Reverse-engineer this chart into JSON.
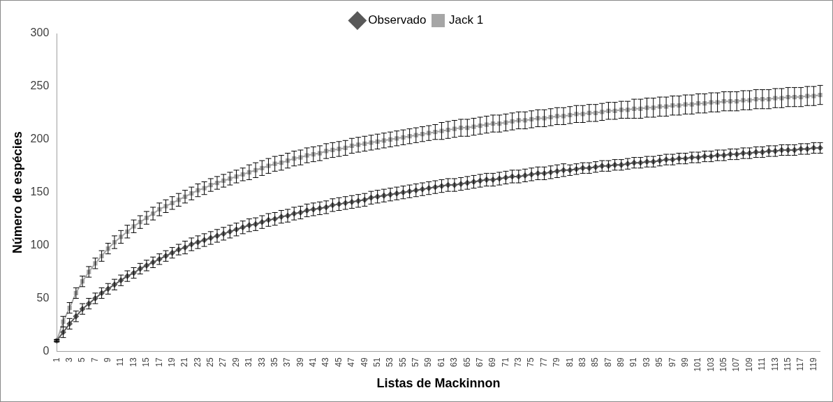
{
  "chart_data": {
    "type": "line",
    "xlabel": "Listas de Mackinnon",
    "ylabel": "Número de espécies",
    "legend": "top",
    "grid": false,
    "line_style": "solid",
    "categories": [
      "1",
      null,
      "3",
      null,
      "5",
      null,
      "7",
      null,
      "9",
      null,
      "11",
      null,
      "13",
      null,
      "15",
      null,
      "17",
      null,
      "19",
      null,
      "21",
      null,
      "23",
      null,
      "25",
      null,
      "27",
      null,
      "29",
      null,
      "31",
      null,
      "33",
      null,
      "35",
      null,
      "37",
      null,
      "39",
      null,
      "41",
      null,
      "43",
      null,
      "45",
      null,
      "47",
      null,
      "49",
      null,
      "51",
      null,
      "53",
      null,
      "55",
      null,
      "57",
      null,
      "59",
      null,
      "61",
      null,
      "63",
      null,
      "65",
      null,
      "67",
      null,
      "69",
      null,
      "71",
      null,
      "73",
      null,
      "75",
      null,
      "77",
      null,
      "79",
      null,
      "81",
      null,
      "83",
      null,
      "85",
      null,
      "87",
      null,
      "89",
      null,
      "91",
      null,
      "93",
      null,
      "95",
      null,
      "97",
      null,
      "99",
      null,
      "101",
      null,
      "103",
      null,
      "105",
      null,
      "107",
      null,
      "109",
      null,
      "111",
      null,
      "113",
      null,
      "115",
      null,
      "117",
      null,
      "119",
      null
    ],
    "ylim": [
      0,
      300
    ],
    "yticks": [
      0,
      50,
      100,
      150,
      200,
      250,
      300
    ],
    "series": [
      {
        "name": "Observado",
        "color": "#595959",
        "marker": "diamond",
        "values": [
          10,
          18,
          26,
          33,
          40,
          45,
          50,
          55,
          59,
          63,
          67,
          71,
          74,
          78,
          81,
          84,
          87,
          90,
          93,
          96,
          98,
          101,
          103,
          105,
          107,
          109,
          111,
          113,
          115,
          117,
          119,
          120,
          122,
          124,
          125,
          127,
          128,
          130,
          131,
          133,
          134,
          135,
          136,
          138,
          139,
          140,
          141,
          142,
          143,
          145,
          146,
          147,
          148,
          149,
          150,
          151,
          152,
          153,
          154,
          155,
          156,
          157,
          157,
          158,
          159,
          160,
          161,
          162,
          162,
          163,
          164,
          165,
          165,
          166,
          167,
          168,
          168,
          169,
          170,
          171,
          171,
          172,
          173,
          173,
          174,
          175,
          175,
          176,
          176,
          177,
          178,
          178,
          179,
          179,
          180,
          181,
          181,
          182,
          182,
          183,
          183,
          184,
          184,
          185,
          185,
          186,
          186,
          187,
          187,
          188,
          188,
          189,
          189,
          190,
          190,
          190,
          191,
          191,
          192,
          192
        ],
        "errors": [
          1,
          5,
          5,
          5,
          5,
          5,
          5,
          5,
          5,
          5,
          5,
          5,
          5,
          5,
          5,
          5,
          5,
          5,
          5,
          5,
          6,
          6,
          6,
          6,
          6,
          6,
          6,
          6,
          6,
          6,
          6,
          6,
          6,
          6,
          6,
          6,
          6,
          6,
          6,
          6,
          6,
          6,
          6,
          6,
          6,
          6,
          6,
          6,
          6,
          6,
          6,
          6,
          6,
          6,
          6,
          6,
          6,
          6,
          6,
          6,
          6,
          6,
          6,
          6,
          6,
          6,
          6,
          6,
          6,
          6,
          6,
          6,
          6,
          6,
          6,
          6,
          6,
          6,
          6,
          6,
          5,
          5,
          5,
          5,
          5,
          5,
          5,
          5,
          5,
          5,
          5,
          5,
          5,
          5,
          5,
          5,
          5,
          5,
          5,
          5,
          5,
          5,
          5,
          5,
          5,
          5,
          5,
          5,
          5,
          5,
          5,
          5,
          5,
          5,
          5,
          5,
          5,
          5,
          5,
          5
        ]
      },
      {
        "name": "Jack 1",
        "color": "#a6a6a6",
        "marker": "square",
        "values": [
          10,
          28,
          41,
          55,
          66,
          75,
          83,
          90,
          97,
          103,
          108,
          113,
          118,
          122,
          126,
          130,
          134,
          137,
          140,
          143,
          146,
          149,
          152,
          154,
          157,
          159,
          161,
          163,
          165,
          167,
          169,
          171,
          173,
          175,
          177,
          178,
          180,
          182,
          183,
          185,
          186,
          187,
          189,
          190,
          191,
          192,
          194,
          195,
          196,
          197,
          198,
          199,
          200,
          201,
          202,
          203,
          204,
          205,
          206,
          207,
          208,
          209,
          210,
          211,
          211,
          212,
          213,
          214,
          215,
          215,
          216,
          217,
          218,
          218,
          219,
          220,
          220,
          221,
          222,
          222,
          223,
          224,
          224,
          225,
          225,
          226,
          227,
          227,
          228,
          228,
          229,
          229,
          230,
          230,
          231,
          231,
          232,
          232,
          233,
          233,
          234,
          234,
          235,
          235,
          236,
          236,
          236,
          237,
          237,
          238,
          238,
          238,
          239,
          239,
          240,
          240,
          240,
          241,
          241,
          242
        ],
        "errors": [
          1,
          5,
          5,
          5,
          5,
          5,
          5,
          5,
          5,
          6,
          6,
          6,
          6,
          6,
          6,
          6,
          6,
          6,
          6,
          6,
          6,
          6,
          6,
          6,
          6,
          6,
          6,
          6,
          6,
          6,
          7,
          7,
          7,
          7,
          7,
          7,
          7,
          7,
          7,
          7,
          7,
          7,
          7,
          7,
          7,
          7,
          7,
          7,
          7,
          7,
          7,
          7,
          7,
          7,
          7,
          7,
          7,
          7,
          7,
          7,
          8,
          8,
          8,
          8,
          8,
          8,
          8,
          8,
          8,
          8,
          8,
          8,
          8,
          8,
          8,
          8,
          8,
          8,
          8,
          8,
          8,
          8,
          8,
          8,
          8,
          8,
          8,
          8,
          8,
          8,
          9,
          9,
          9,
          9,
          9,
          9,
          9,
          9,
          9,
          9,
          9,
          9,
          9,
          9,
          9,
          9,
          9,
          9,
          9,
          9,
          9,
          9,
          9,
          9,
          9,
          9,
          9,
          9,
          9,
          9
        ]
      }
    ]
  }
}
